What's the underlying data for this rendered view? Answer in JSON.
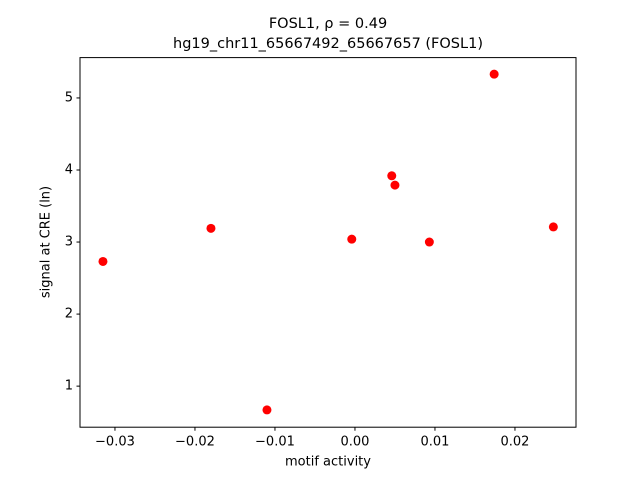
{
  "chart_data": {
    "type": "scatter",
    "title": "FOSL1, ρ = 0.49",
    "subtitle": "hg19_chr11_65667492_65667657 (FOSL1)",
    "x_label": "motif activity",
    "y_label": "signal at CRE (ln)",
    "color": "#ff0000",
    "x": [
      -0.0315,
      -0.018,
      -0.011,
      -0.0004,
      0.0046,
      0.005,
      0.0093,
      0.0174,
      0.0248
    ],
    "values": [
      2.73,
      3.19,
      0.67,
      3.04,
      3.92,
      3.79,
      3.0,
      5.33,
      3.21
    ],
    "xlim": [
      -0.03437,
      0.02763
    ],
    "ylim": [
      0.43,
      5.56
    ],
    "xticks": [
      {
        "value": -0.03,
        "label": "−0.03"
      },
      {
        "value": -0.02,
        "label": "−0.02"
      },
      {
        "value": -0.01,
        "label": "−0.01"
      },
      {
        "value": 0,
        "label": "0.00"
      },
      {
        "value": 0.01,
        "label": "0.01"
      },
      {
        "value": 0.02,
        "label": "0.02"
      }
    ],
    "yticks": [
      1,
      2,
      3,
      4,
      5
    ],
    "grid": false
  }
}
